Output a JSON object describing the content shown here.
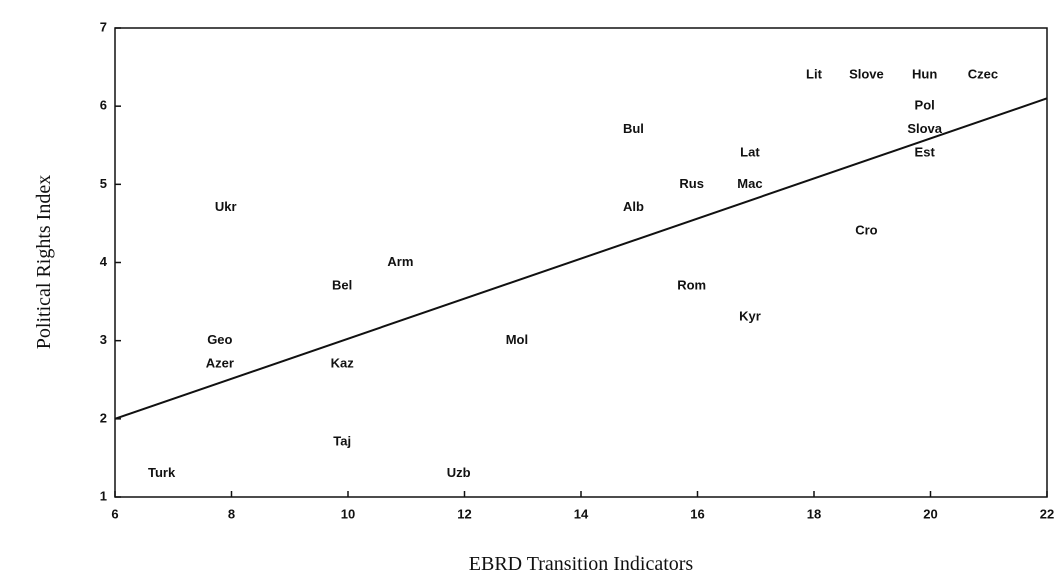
{
  "chart_data": {
    "type": "scatter",
    "xlabel": "EBRD Transition Indicators",
    "ylabel": "Political Rights Index",
    "labels": [
      "Turk",
      "Geo",
      "Azer",
      "Ukr",
      "Bel",
      "Kaz",
      "Taj",
      "Arm",
      "Uzb",
      "Mol",
      "Bul",
      "Alb",
      "Rom",
      "Rus",
      "Mac",
      "Lat",
      "Kyr",
      "Lit",
      "Slove",
      "Hun",
      "Czec",
      "Pol",
      "Slova",
      "Est",
      "Cro"
    ],
    "x": [
      6.8,
      7.8,
      7.8,
      7.9,
      9.9,
      9.9,
      9.9,
      10.9,
      11.9,
      12.9,
      14.9,
      14.9,
      15.9,
      15.9,
      16.9,
      16.9,
      16.9,
      18.0,
      18.9,
      19.9,
      20.9,
      19.9,
      19.9,
      19.9,
      18.9
    ],
    "y": [
      1.3,
      3.0,
      2.7,
      4.7,
      3.7,
      2.7,
      1.7,
      4.0,
      1.3,
      3.0,
      5.7,
      4.7,
      3.7,
      5.0,
      5.0,
      5.4,
      3.3,
      6.4,
      6.4,
      6.4,
      6.4,
      6.0,
      5.7,
      5.4,
      4.4
    ],
    "trendline": {
      "x": [
        6,
        22
      ],
      "y": [
        2.0,
        6.1
      ]
    },
    "xlim": [
      6,
      22
    ],
    "xticks": [
      6,
      8,
      10,
      12,
      14,
      16,
      18,
      20,
      22
    ],
    "ylim": [
      1,
      7
    ],
    "yticks": [
      1,
      2,
      3,
      4,
      5,
      6,
      7
    ],
    "color": "#111111"
  }
}
